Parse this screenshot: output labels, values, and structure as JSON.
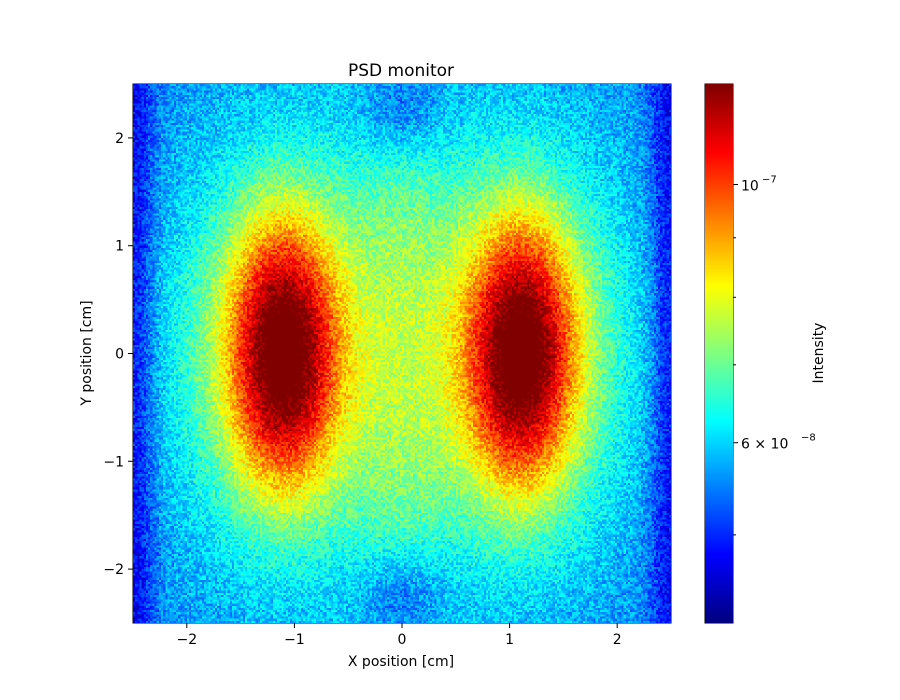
{
  "chart_data": {
    "type": "heatmap",
    "title": "PSD monitor",
    "xlabel": "X position [cm]",
    "ylabel": "Y  position [cm]",
    "colorbar_label": "Intensity",
    "colormap": "jet",
    "color_scale": "log",
    "xlim": [
      -2.5,
      2.5
    ],
    "ylim": [
      -2.5,
      2.5
    ],
    "clim": [
      4.2e-08,
      1.22e-07
    ],
    "x_ticks": [
      -2,
      -1,
      0,
      1,
      2
    ],
    "x_tick_labels": [
      "−2",
      "−1",
      "0",
      "1",
      "2"
    ],
    "y_ticks": [
      -2,
      -1,
      0,
      1,
      2
    ],
    "y_tick_labels": [
      "−2",
      "−1",
      "0",
      "1",
      "2"
    ],
    "colorbar_major_ticks": [
      1e-07,
      6e-08
    ],
    "colorbar_tick_labels": [
      "10",
      "−7",
      "6 × 10",
      "−8"
    ],
    "colorbar_minor_ticks": [
      9e-08,
      8e-08,
      7e-08,
      5e-08
    ],
    "grid": false,
    "legend": "none",
    "description_of_values": {
      "peak_intensity_approx": 1.2e-07,
      "lobe_centers_x": [
        -1.1,
        1.1
      ],
      "lobe_center_y": 0.0,
      "central_band_intensity_approx": 7e-08,
      "min_intensity_regions": "center top and center bottom (x≈0, |y|≈2.3)",
      "min_intensity_approx": 4.5e-08
    }
  }
}
